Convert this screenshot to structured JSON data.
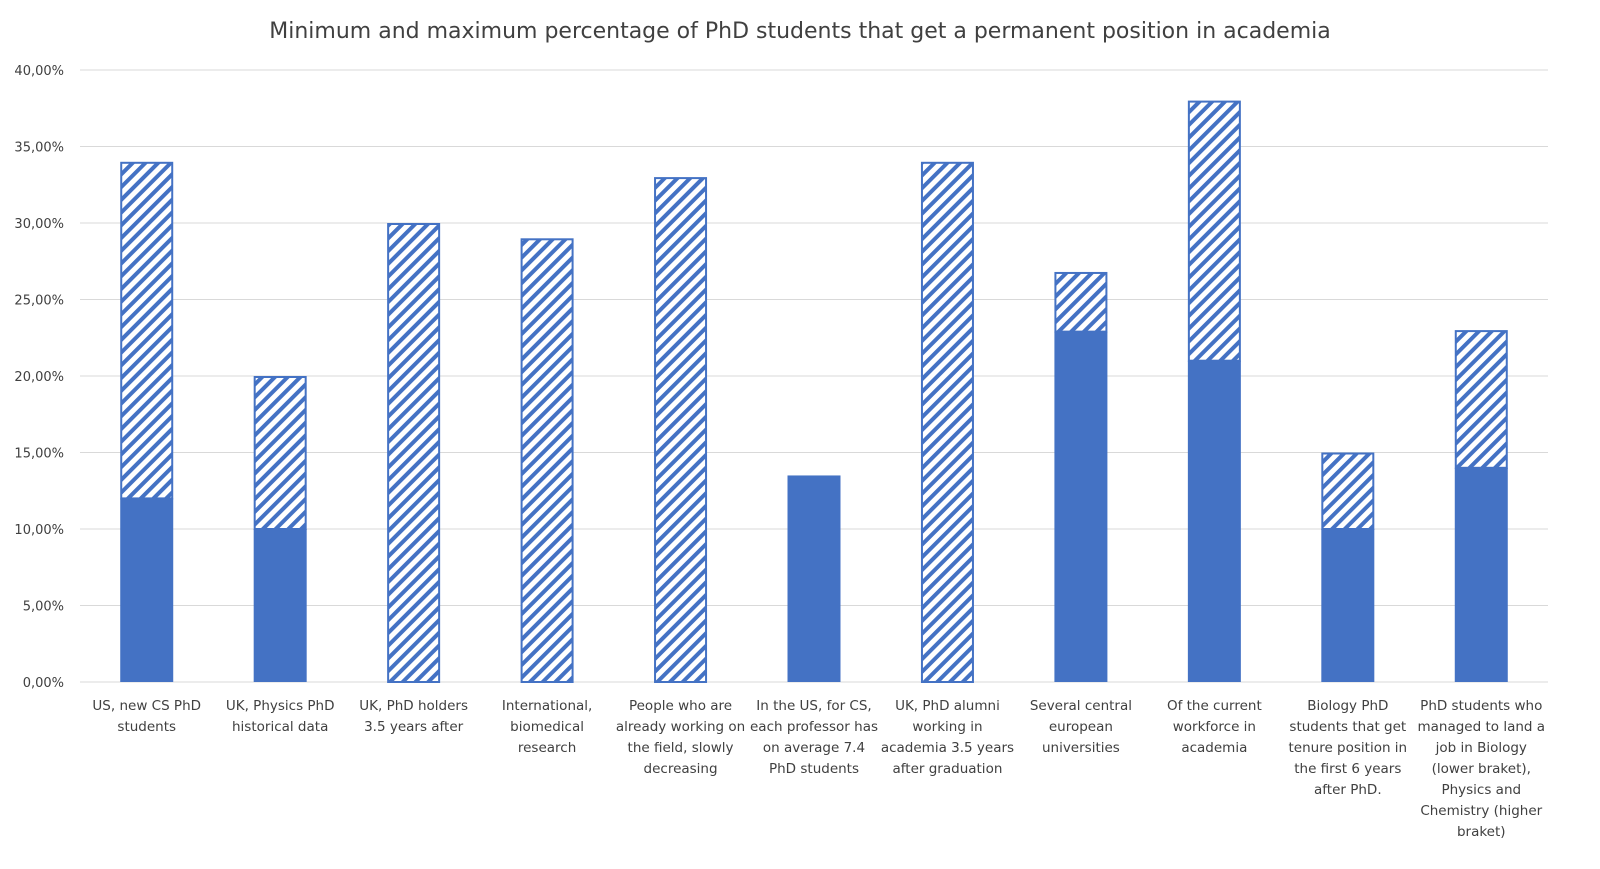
{
  "chart_data": {
    "type": "bar",
    "title": "Minimum and maximum percentage of PhD students that get a permanent position in academia",
    "ylim": [
      0,
      40
    ],
    "yticks": [
      "0,00%",
      "5,00%",
      "10,00%",
      "15,00%",
      "20,00%",
      "25,00%",
      "30,00%",
      "35,00%",
      "40,00%"
    ],
    "grid": true,
    "colors": {
      "solid": "#4472c4",
      "hatch": "#4472c4"
    },
    "categories": [
      [
        "US, new CS PhD",
        "students"
      ],
      [
        "UK, Physics PhD",
        "historical data"
      ],
      [
        "UK, PhD holders",
        "3.5 years after"
      ],
      [
        "International,",
        "biomedical",
        "research"
      ],
      [
        "People who are",
        "already working on",
        "the field, slowly",
        "decreasing"
      ],
      [
        "In the US, for CS,",
        "each professor has",
        "on average 7.4",
        "PhD students"
      ],
      [
        "UK, PhD alumni",
        "working in",
        "academia 3.5 years",
        "after graduation"
      ],
      [
        "Several central",
        "european",
        "universities"
      ],
      [
        "Of the current",
        "workforce in",
        "academia"
      ],
      [
        "Biology PhD",
        "students that get",
        "tenure position in",
        "the first 6 years",
        "after PhD."
      ],
      [
        "PhD students who",
        "managed to land a",
        "job in Biology",
        "(lower braket),",
        "Physics and",
        "Chemistry (higher",
        "braket)"
      ]
    ],
    "series": [
      {
        "name": "",
        "style": "solid",
        "values": [
          12,
          10,
          0,
          0,
          0,
          13.5,
          0,
          22.9,
          21,
          10,
          14
        ]
      },
      {
        "name": "",
        "style": "hatched",
        "values": [
          22,
          10,
          30,
          29,
          33,
          0,
          34,
          3.9,
          17,
          5,
          9
        ]
      }
    ]
  }
}
